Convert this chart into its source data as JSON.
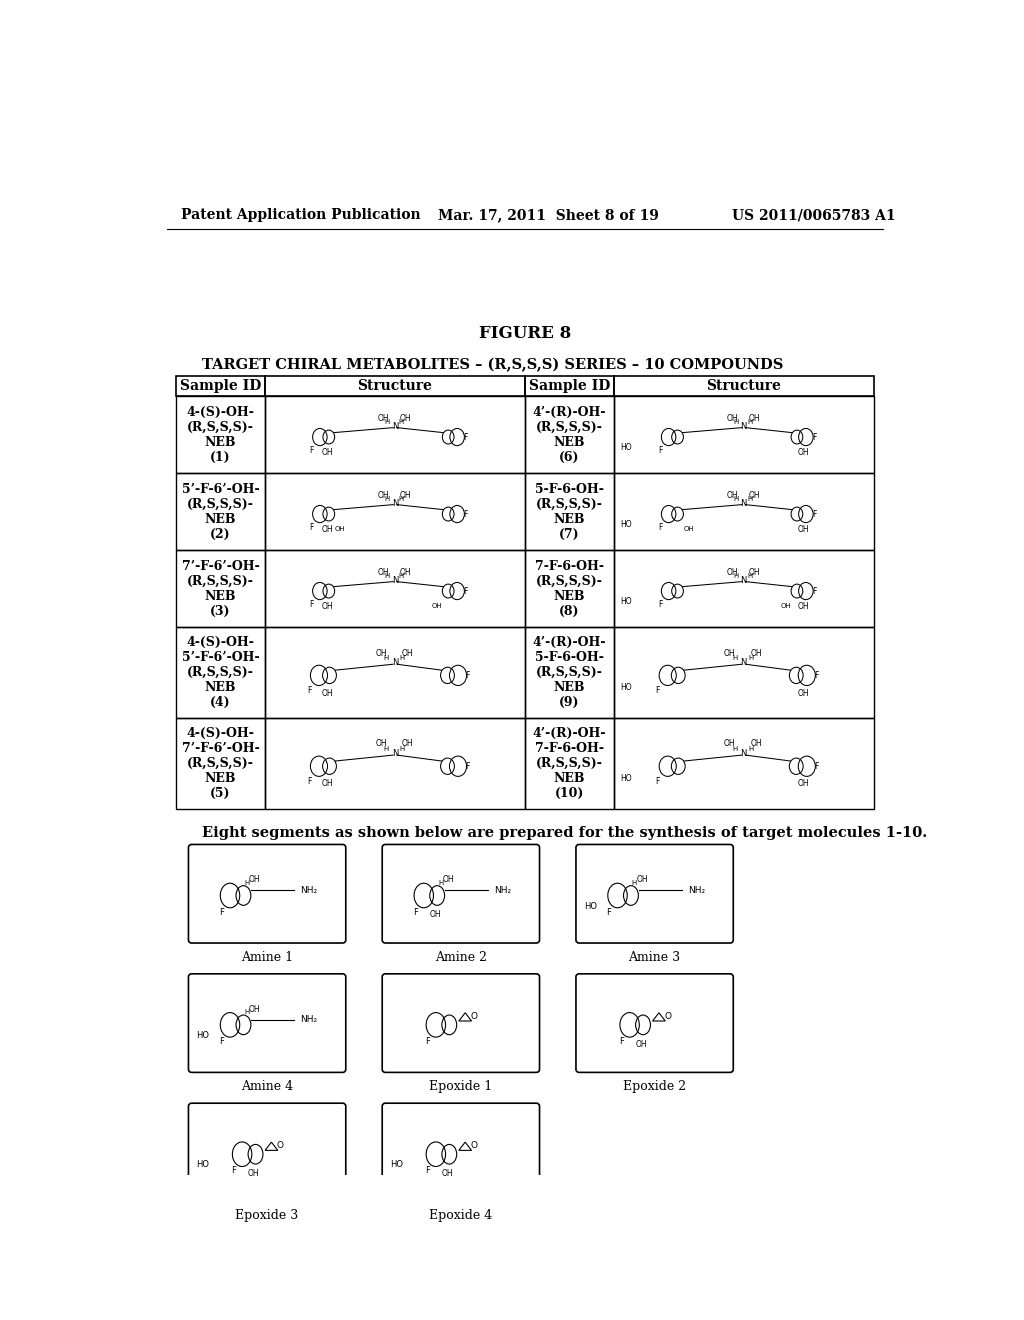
{
  "header_left": "Patent Application Publication",
  "header_center": "Mar. 17, 2011  Sheet 8 of 19",
  "header_right": "US 2011/0065783 A1",
  "figure_title": "FIGURE 8",
  "table_title": "TARGET CHIRAL METABOLITES – (R,S,S,S) SERIES – 10 COMPOUNDS",
  "table_headers": [
    "Sample ID",
    "Structure",
    "Sample ID",
    "Structure"
  ],
  "table_rows": [
    {
      "id_left": "4-(S)-OH-\n(R,S,S,S)-\nNEB\n(1)",
      "id_right": "4’-(R)-OH-\n(R,S,S,S)-\nNEB\n(6)"
    },
    {
      "id_left": "5’-F-6’-OH-\n(R,S,S,S)-\nNEB\n(2)",
      "id_right": "5-F-6-OH-\n(R,S,S,S)-\nNEB\n(7)"
    },
    {
      "id_left": "7’-F-6’-OH-\n(R,S,S,S)-\nNEB\n(3)",
      "id_right": "7-F-6-OH-\n(R,S,S,S)-\nNEB\n(8)"
    },
    {
      "id_left": "4-(S)-OH-\n5’-F-6’-OH-\n(R,S,S,S)-\nNEB\n(4)",
      "id_right": "4’-(R)-OH-\n5-F-6-OH-\n(R,S,S,S)-\nNEB\n(9)"
    },
    {
      "id_left": "4-(S)-OH-\n7’-F-6’-OH-\n(R,S,S,S)-\nNEB\n(5)",
      "id_right": "4’-(R)-OH-\n7-F-6-OH-\n(R,S,S,S)-\nNEB\n(10)"
    }
  ],
  "segments_text": "Eight segments as shown below are prepared for the synthesis of target molecules 1-10.",
  "segments": [
    {
      "label": "Amine 1",
      "row": 0,
      "col": 0
    },
    {
      "label": "Amine 2",
      "row": 0,
      "col": 1
    },
    {
      "label": "Amine 3",
      "row": 0,
      "col": 2
    },
    {
      "label": "Amine 4",
      "row": 1,
      "col": 0
    },
    {
      "label": "Epoxide 1",
      "row": 1,
      "col": 1
    },
    {
      "label": "Epoxide 2",
      "row": 1,
      "col": 2
    },
    {
      "label": "Epoxide 3",
      "row": 2,
      "col": 0
    },
    {
      "label": "Epoxide 4",
      "row": 2,
      "col": 1
    }
  ],
  "bg_color": "#ffffff",
  "text_color": "#000000"
}
